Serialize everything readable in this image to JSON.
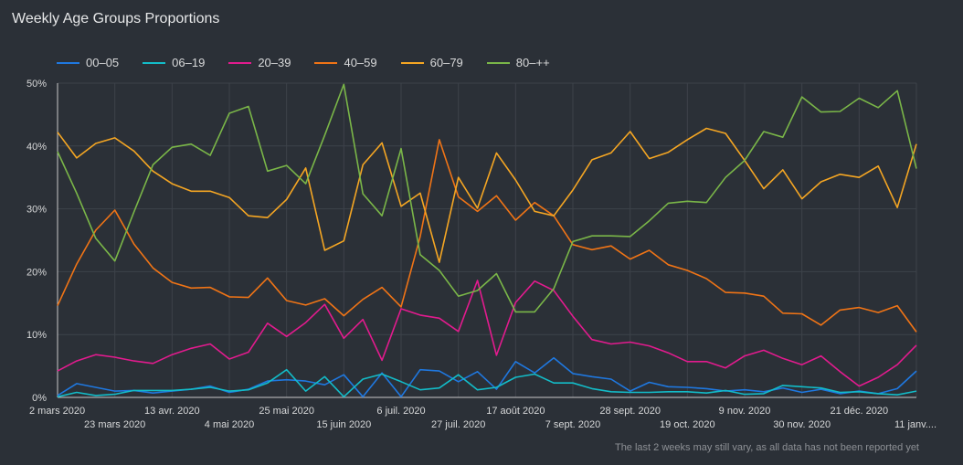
{
  "title": "Weekly Age Groups Proportions",
  "footnote": "The last 2 weeks may still vary, as all data has not been reported yet",
  "chart_data": {
    "type": "line",
    "title": "Weekly Age Groups Proportions",
    "ylim": [
      0,
      50
    ],
    "y_ticks": [
      "0%",
      "10%",
      "20%",
      "30%",
      "40%",
      "50%"
    ],
    "grid": true,
    "legend_position": "top-left",
    "x_labels": [
      {
        "label": "2 mars 2020",
        "week": 0
      },
      {
        "label": "23 mars 2020",
        "week": 3
      },
      {
        "label": "13 avr. 2020",
        "week": 6
      },
      {
        "label": "4 mai 2020",
        "week": 9
      },
      {
        "label": "25 mai 2020",
        "week": 12
      },
      {
        "label": "15 juin 2020",
        "week": 15
      },
      {
        "label": "6 juil. 2020",
        "week": 18
      },
      {
        "label": "27 juil. 2020",
        "week": 21
      },
      {
        "label": "17 août 2020",
        "week": 24
      },
      {
        "label": "7 sept. 2020",
        "week": 27
      },
      {
        "label": "28 sept. 2020",
        "week": 30
      },
      {
        "label": "19 oct. 2020",
        "week": 33
      },
      {
        "label": "9 nov. 2020",
        "week": 36
      },
      {
        "label": "30 nov. 2020",
        "week": 39
      },
      {
        "label": "21 déc. 2020",
        "week": 42
      },
      {
        "label": "11 janv....",
        "week": 45
      }
    ],
    "series": [
      {
        "name": "00–05",
        "color": "#1f78e0",
        "values": [
          0.3,
          2.2,
          1.6,
          1.0,
          1.1,
          0.7,
          1.0,
          1.3,
          1.8,
          0.8,
          1.3,
          2.6,
          2.8,
          2.6,
          2.0,
          3.6,
          0.1,
          3.9,
          0.1,
          4.4,
          4.2,
          2.5,
          4.1,
          1.3,
          5.7,
          3.9,
          6.3,
          3.8,
          3.3,
          2.9,
          1.0,
          2.4,
          1.7,
          1.6,
          1.4,
          1.0,
          1.2,
          0.9,
          1.5,
          0.8,
          1.3,
          0.6,
          1.0,
          0.6,
          1.4,
          4.2
        ]
      },
      {
        "name": "06–19",
        "color": "#13bcc8",
        "values": [
          0.1,
          0.8,
          0.3,
          0.5,
          1.1,
          1.1,
          1.1,
          1.3,
          1.6,
          1.0,
          1.2,
          2.3,
          4.4,
          1.0,
          3.3,
          0.1,
          2.9,
          3.7,
          2.5,
          1.2,
          1.5,
          3.6,
          1.2,
          1.6,
          3.2,
          3.7,
          2.3,
          2.3,
          1.4,
          0.9,
          0.8,
          0.8,
          0.9,
          0.9,
          0.7,
          1.1,
          0.5,
          0.6,
          1.9,
          1.7,
          1.5,
          0.8,
          0.9,
          0.6,
          0.4,
          1.0
        ]
      },
      {
        "name": "20–39",
        "color": "#e21b8e",
        "values": [
          4.2,
          5.8,
          6.8,
          6.4,
          5.8,
          5.4,
          6.8,
          7.8,
          8.5,
          6.1,
          7.2,
          11.8,
          9.7,
          11.9,
          14.8,
          9.4,
          12.4,
          5.9,
          14.1,
          13.1,
          12.6,
          10.5,
          18.6,
          6.7,
          15.1,
          18.5,
          17.0,
          12.9,
          9.2,
          8.5,
          8.8,
          8.2,
          7.1,
          5.7,
          5.7,
          4.7,
          6.6,
          7.5,
          6.2,
          5.2,
          6.6,
          4.1,
          1.8,
          3.2,
          5.2,
          8.3
        ]
      },
      {
        "name": "40–59",
        "color": "#f07416",
        "values": [
          14.6,
          21.2,
          26.6,
          29.8,
          24.4,
          20.6,
          18.3,
          17.4,
          17.5,
          16.0,
          15.9,
          19.0,
          15.4,
          14.7,
          15.7,
          13.0,
          15.6,
          17.5,
          14.4,
          25.6,
          41.0,
          31.9,
          29.6,
          32.1,
          28.2,
          31.0,
          28.9,
          24.3,
          23.5,
          24.1,
          22.0,
          23.4,
          21.1,
          20.2,
          18.9,
          16.7,
          16.6,
          16.1,
          13.4,
          13.3,
          11.5,
          13.9,
          14.3,
          13.5,
          14.6,
          10.4
        ]
      },
      {
        "name": "60–79",
        "color": "#f5a623",
        "values": [
          42.2,
          38.1,
          40.4,
          41.3,
          39.2,
          36.0,
          34.0,
          32.8,
          32.8,
          31.8,
          28.9,
          28.6,
          31.5,
          36.5,
          23.4,
          24.9,
          37.0,
          40.5,
          30.4,
          32.5,
          21.5,
          35.0,
          30.1,
          38.9,
          34.6,
          29.6,
          28.9,
          33.0,
          37.8,
          38.9,
          42.3,
          38.0,
          39.0,
          41.0,
          42.8,
          42.0,
          37.7,
          33.2,
          36.2,
          31.6,
          34.3,
          35.5,
          35.0,
          36.8,
          30.2,
          40.3
        ]
      },
      {
        "name": "80–++",
        "color": "#7ab648",
        "values": [
          39.1,
          32.5,
          25.3,
          21.7,
          29.5,
          37.0,
          39.8,
          40.3,
          38.5,
          45.2,
          46.3,
          36.0,
          36.9,
          34.0,
          41.7,
          49.8,
          32.4,
          28.9,
          39.6,
          22.7,
          20.2,
          16.1,
          17.0,
          19.7,
          13.6,
          13.6,
          17.3,
          24.8,
          25.7,
          25.7,
          25.6,
          28.1,
          30.9,
          31.2,
          31.0,
          35.0,
          37.7,
          42.3,
          41.4,
          47.8,
          45.4,
          45.5,
          47.6,
          46.1,
          48.8,
          36.4
        ]
      }
    ]
  }
}
